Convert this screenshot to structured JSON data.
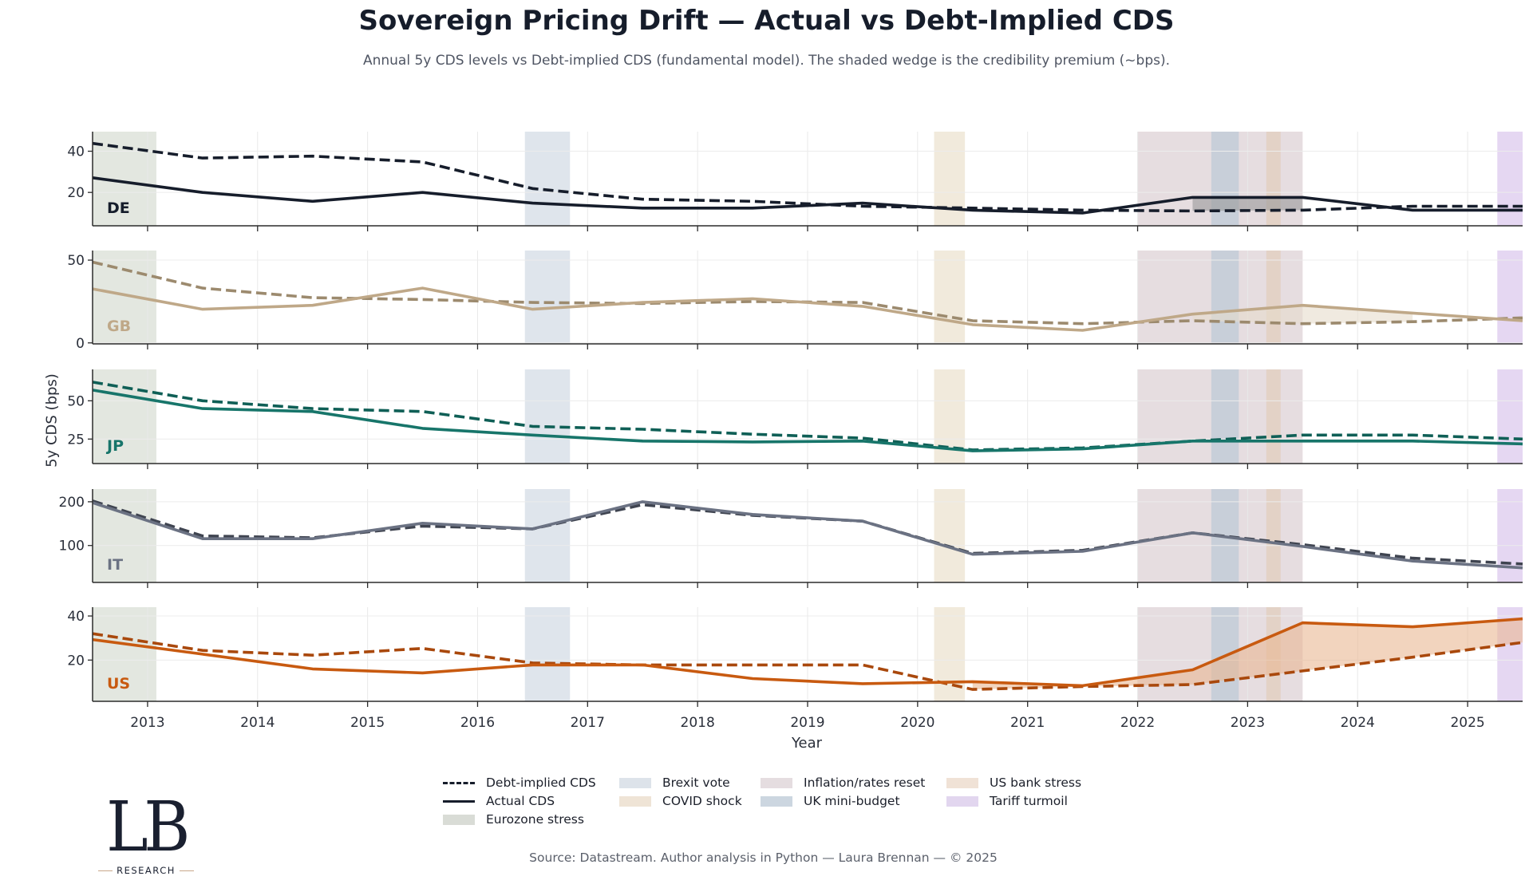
{
  "header": {
    "title": "Sovereign Pricing Drift — Actual vs Debt-Implied CDS",
    "subtitle": "Annual 5y CDS levels vs Debt-implied CDS (fundamental model). The shaded wedge is the credibility premium (~bps)."
  },
  "footer": {
    "source": "Source: Datastream. Author analysis in Python — Laura Brennan — © 2025",
    "logo_mark": "LB",
    "logo_sub": "RESEARCH"
  },
  "legend": {
    "items": [
      {
        "label": "Debt-implied CDS",
        "kind": "dashed",
        "color": "#161d2b"
      },
      {
        "label": "Actual CDS",
        "kind": "solid",
        "color": "#161d2b"
      },
      {
        "label": "Eurozone stress",
        "kind": "patch",
        "color": "#d9dcd6"
      },
      {
        "label": "Brexit vote",
        "kind": "patch",
        "color": "#dde3ea"
      },
      {
        "label": "COVID shock",
        "kind": "patch",
        "color": "#efe4d6"
      },
      {
        "label": "Inflation/rates reset",
        "kind": "patch",
        "color": "#e5dde0"
      },
      {
        "label": "UK mini-budget",
        "kind": "patch",
        "color": "#ccd6e0"
      },
      {
        "label": "US bank stress",
        "kind": "patch",
        "color": "#f0e2d6"
      },
      {
        "label": "Tariff turmoil",
        "kind": "patch",
        "color": "#e2d6ef"
      }
    ]
  },
  "chart_data": {
    "type": "line",
    "title": "Sovereign Pricing Drift — Actual vs Debt-Implied CDS",
    "xlabel": "Year",
    "ylabel": "5y CDS (bps)",
    "xlim": [
      2012.5,
      2025.5
    ],
    "x_ticks": [
      2013,
      2014,
      2015,
      2016,
      2017,
      2018,
      2019,
      2020,
      2021,
      2022,
      2023,
      2024,
      2025
    ],
    "x": [
      2012.5,
      2013.5,
      2014.5,
      2015.5,
      2016.5,
      2017.5,
      2018.5,
      2019.5,
      2020.5,
      2021.5,
      2022.5,
      2023.5,
      2024.5,
      2025.5
    ],
    "grid": true,
    "legend_position": "bottom-center",
    "wedge_rule": "shaded where Actual > Debt-implied (from 2020 onward)",
    "events": [
      {
        "name": "Eurozone stress",
        "start": 2012.5,
        "end": 2013.08,
        "color": "#d9dfd6",
        "opacity": 0.75
      },
      {
        "name": "Brexit vote",
        "start": 2016.43,
        "end": 2016.84,
        "color": "#c9d3e0",
        "opacity": 0.6
      },
      {
        "name": "COVID shock",
        "start": 2020.15,
        "end": 2020.43,
        "color": "#e8dcc4",
        "opacity": 0.6
      },
      {
        "name": "Inflation/rates reset",
        "start": 2022.0,
        "end": 2023.5,
        "color": "#d5c6cc",
        "opacity": 0.6
      },
      {
        "name": "UK mini-budget",
        "start": 2022.67,
        "end": 2022.92,
        "color": "#aec3d3",
        "opacity": 0.55
      },
      {
        "name": "US bank stress",
        "start": 2023.17,
        "end": 2023.3,
        "color": "#e0c8b0",
        "opacity": 0.55
      },
      {
        "name": "Tariff turmoil",
        "start": 2025.27,
        "end": 2025.5,
        "color": "#d4bde9",
        "opacity": 0.6
      }
    ],
    "panels": [
      {
        "country": "DE",
        "color": "#161d2b",
        "implied_color": "#161d2b",
        "wedge_color": "#9a9a9a",
        "ylim": [
          3.8,
          49.5
        ],
        "yticks": [
          20,
          40
        ],
        "actual": [
          27.1,
          20.0,
          15.7,
          20.0,
          14.8,
          12.4,
          12.4,
          14.8,
          11.4,
          10.0,
          17.6,
          17.6,
          11.4,
          11.4
        ],
        "implied": [
          43.8,
          36.7,
          37.6,
          34.8,
          21.9,
          16.7,
          15.7,
          13.3,
          12.4,
          11.4,
          11.0,
          11.4,
          13.3,
          13.3
        ]
      },
      {
        "country": "GB",
        "color": "#bfa888",
        "implied_color": "#9c8a6e",
        "wedge_color": "#e6dccb",
        "ylim": [
          -0.6,
          55.8
        ],
        "yticks": [
          0,
          50
        ],
        "actual": [
          32.6,
          20.3,
          22.7,
          33.1,
          20.3,
          24.4,
          26.7,
          22.1,
          11.0,
          7.6,
          17.4,
          22.7,
          18.0,
          13.4
        ],
        "implied": [
          48.8,
          33.1,
          27.3,
          26.2,
          24.4,
          23.8,
          25.0,
          24.4,
          13.4,
          11.6,
          13.4,
          11.6,
          12.8,
          15.1
        ]
      },
      {
        "country": "JP",
        "color": "#17756a",
        "implied_color": "#0f5f56",
        "wedge_color": "#b8d8d2",
        "ylim": [
          9,
          70.5
        ],
        "yticks": [
          25,
          50
        ],
        "actual": [
          57.0,
          44.9,
          43.0,
          32.0,
          27.6,
          23.7,
          23.1,
          23.7,
          17.3,
          18.6,
          23.7,
          23.7,
          23.7,
          21.8
        ],
        "implied": [
          62.2,
          50.0,
          44.9,
          43.0,
          33.3,
          31.4,
          28.2,
          25.6,
          17.9,
          19.2,
          23.7,
          27.6,
          27.6,
          25.0
        ]
      },
      {
        "country": "IT",
        "color": "#6b7283",
        "implied_color": "#3f4450",
        "wedge_color": "#c9ccd3",
        "ylim": [
          15.6,
          229
        ],
        "yticks": [
          100,
          200
        ],
        "actual": [
          198,
          115.6,
          115.6,
          151,
          138,
          200,
          171,
          155.6,
          80,
          86.7,
          129,
          97.8,
          64.4,
          48.9
        ],
        "implied": [
          202,
          122,
          117.8,
          144.4,
          138,
          193.3,
          169,
          155.6,
          82,
          88.9,
          129,
          102,
          71,
          57.8
        ]
      },
      {
        "country": "US",
        "color": "#c85a10",
        "implied_color": "#a9480c",
        "wedge_color": "#eab892",
        "ylim": [
          1.3,
          44
        ],
        "yticks": [
          20,
          40
        ],
        "actual": [
          29.3,
          22.7,
          16.0,
          14.2,
          17.8,
          17.8,
          11.6,
          9.3,
          10.2,
          8.4,
          15.6,
          36.9,
          35.1,
          38.7
        ],
        "implied": [
          32.0,
          24.4,
          22.2,
          25.3,
          18.7,
          17.8,
          17.8,
          17.8,
          6.7,
          8.0,
          8.9,
          15.1,
          21.3,
          28.0
        ]
      }
    ]
  }
}
